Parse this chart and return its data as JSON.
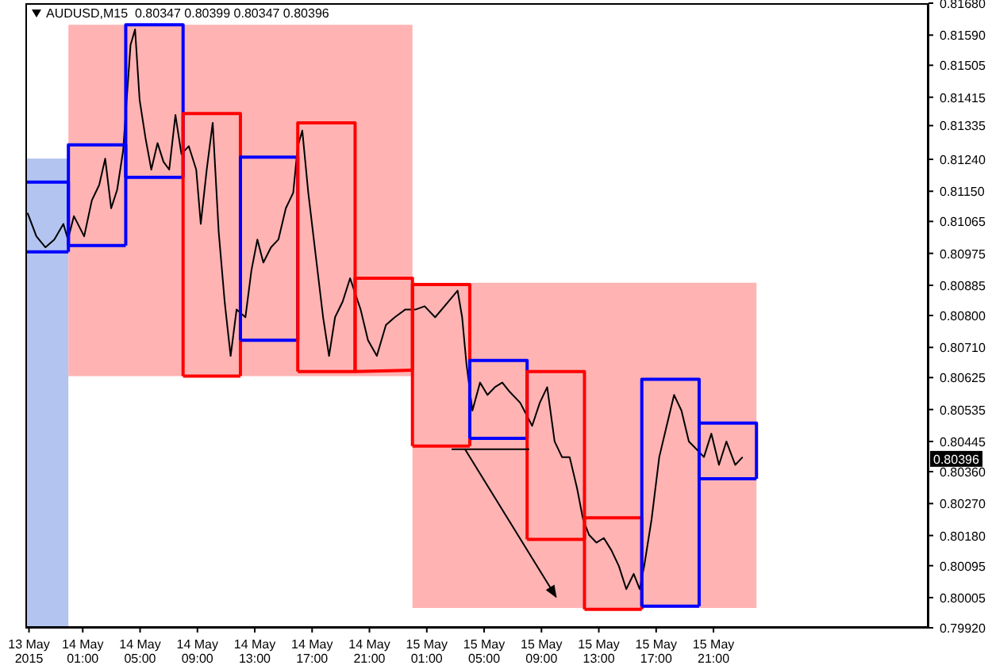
{
  "chart_data": {
    "type": "line",
    "title": "AUDUSD,M15  0.80347 0.80399 0.80347 0.80396",
    "xlim": [
      "2015-05-13T21:00",
      "2015-05-16T12:00"
    ],
    "ylim": [
      0.7992,
      0.8168
    ],
    "xticks": [
      {
        "value": "2015-05-13T21:15",
        "label": "13 May 2015"
      },
      {
        "value": "2015-05-14T01:00",
        "label": "14 May 01:00"
      },
      {
        "value": "2015-05-14T05:00",
        "label": "14 May 05:00"
      },
      {
        "value": "2015-05-14T09:00",
        "label": "14 May 09:00"
      },
      {
        "value": "2015-05-14T13:00",
        "label": "14 May 13:00"
      },
      {
        "value": "2015-05-14T17:00",
        "label": "14 May 17:00"
      },
      {
        "value": "2015-05-14T21:00",
        "label": "14 May 21:00"
      },
      {
        "value": "2015-05-15T01:00",
        "label": "15 May 01:00"
      },
      {
        "value": "2015-05-15T05:00",
        "label": "15 May 05:00"
      },
      {
        "value": "2015-05-15T09:00",
        "label": "15 May 09:00"
      },
      {
        "value": "2015-05-15T13:00",
        "label": "15 May 13:00"
      },
      {
        "value": "2015-05-15T17:00",
        "label": "15 May 17:00"
      },
      {
        "value": "2015-05-15T21:00",
        "label": "15 May 21:00"
      }
    ],
    "yticks": [
      {
        "value": 0.8168,
        "label": "0.81680"
      },
      {
        "value": 0.8159,
        "label": "0.81590"
      },
      {
        "value": 0.81505,
        "label": "0.81505"
      },
      {
        "value": 0.81415,
        "label": "0.81415"
      },
      {
        "value": 0.81335,
        "label": "0.81335"
      },
      {
        "value": 0.8124,
        "label": "0.81240"
      },
      {
        "value": 0.8115,
        "label": "0.81150"
      },
      {
        "value": 0.81065,
        "label": "0.81065"
      },
      {
        "value": 0.80975,
        "label": "0.80975"
      },
      {
        "value": 0.80885,
        "label": "0.80885"
      },
      {
        "value": 0.808,
        "label": "0.80800"
      },
      {
        "value": 0.8071,
        "label": "0.80710"
      },
      {
        "value": 0.80625,
        "label": "0.80625"
      },
      {
        "value": 0.80535,
        "label": "0.80535"
      },
      {
        "value": 0.80445,
        "label": "0.80445"
      },
      {
        "value": 0.8036,
        "label": "0.80360"
      },
      {
        "value": 0.8027,
        "label": "0.80270"
      },
      {
        "value": 0.8018,
        "label": "0.80180"
      },
      {
        "value": 0.80095,
        "label": "0.80095"
      },
      {
        "value": 0.80005,
        "label": "0.80005"
      },
      {
        "value": 0.7992,
        "label": "0.79920"
      }
    ],
    "annotations": [
      {
        "text": "0.80396",
        "y": 0.80396
      }
    ],
    "series": [
      {
        "type": "area",
        "color": "#b4c4f0",
        "x": [
          "2015-05-13T21:00",
          "2015-05-14T00:00"
        ],
        "values": [
          null,
          null
        ],
        "lower": [
          0.7992,
          0.7992
        ],
        "upper": [
          0.81242,
          0.81242
        ]
      },
      {
        "type": "area",
        "color": "#ffb3b3",
        "x": [
          "2015-05-14T00:00",
          "2015-05-15T00:00"
        ],
        "values": [
          null,
          null
        ],
        "lower": [
          0.80629,
          0.80629
        ],
        "upper": [
          0.81619,
          0.81619
        ]
      },
      {
        "type": "area",
        "color": "#ffb3b3",
        "x": [
          "2015-05-15T00:00",
          "2015-05-16T00:00"
        ],
        "values": [
          null,
          null
        ],
        "lower": [
          0.79976,
          0.79976
        ],
        "upper": [
          0.80892,
          0.80892
        ]
      },
      {
        "color": "#000000",
        "x": [
          "2015-05-13T21:09",
          "2015-05-13T21:46",
          "2015-05-13T22:24",
          "2015-05-13T23:01",
          "2015-05-13T23:39",
          "2015-05-13T23:58",
          "2015-05-14T00:23",
          "2015-05-14T01:06",
          "2015-05-14T01:38",
          "2015-05-14T02:09",
          "2015-05-14T02:34",
          "2015-05-14T02:59",
          "2015-05-14T03:24",
          "2015-05-14T03:49",
          "2015-05-14T04:20",
          "2015-05-14T04:39",
          "2015-05-14T04:58",
          "2015-05-14T05:23",
          "2015-05-14T05:47",
          "2015-05-14T06:13",
          "2015-05-14T06:38",
          "2015-05-14T07:02",
          "2015-05-14T07:28",
          "2015-05-14T07:53",
          "2015-05-14T08:24",
          "2015-05-14T08:55",
          "2015-05-14T09:14",
          "2015-05-14T09:39",
          "2015-05-14T10:04",
          "2015-05-14T10:29",
          "2015-05-14T10:54",
          "2015-05-14T11:19",
          "2015-05-14T11:44",
          "2015-05-14T12:21",
          "2015-05-14T12:46",
          "2015-05-14T13:11",
          "2015-05-14T13:36",
          "2015-05-14T14:08",
          "2015-05-14T14:39",
          "2015-05-14T15:10",
          "2015-05-14T15:41",
          "2015-05-14T16:00",
          "2015-05-14T16:19",
          "2015-05-14T16:44",
          "2015-05-14T17:15",
          "2015-05-14T17:46",
          "2015-05-14T18:11",
          "2015-05-14T18:36",
          "2015-05-14T19:08",
          "2015-05-14T19:39",
          "2015-05-14T20:23",
          "2015-05-14T20:54",
          "2015-05-14T21:31",
          "2015-05-14T22:09",
          "2015-05-14T22:46",
          "2015-05-14T23:30",
          "2015-05-15T00:14",
          "2015-05-15T00:51",
          "2015-05-15T01:35",
          "2015-05-15T02:19",
          "2015-05-15T03:09",
          "2015-05-15T03:28",
          "2015-05-15T03:46",
          "2015-05-15T04:11",
          "2015-05-15T04:43",
          "2015-05-15T05:14",
          "2015-05-15T05:45",
          "2015-05-15T06:16",
          "2015-05-15T06:47",
          "2015-05-15T07:31",
          "2015-05-15T08:21",
          "2015-05-15T08:53",
          "2015-05-15T09:24",
          "2015-05-15T09:55",
          "2015-05-15T10:26",
          "2015-05-15T10:58",
          "2015-05-15T11:29",
          "2015-05-15T11:54",
          "2015-05-15T12:19",
          "2015-05-15T12:50",
          "2015-05-15T13:21",
          "2015-05-15T13:53",
          "2015-05-15T14:24",
          "2015-05-15T14:55",
          "2015-05-15T15:26",
          "2015-05-15T15:51",
          "2015-05-15T16:10",
          "2015-05-15T16:41",
          "2015-05-15T17:13",
          "2015-05-15T17:44",
          "2015-05-15T18:15",
          "2015-05-15T18:46",
          "2015-05-15T19:17",
          "2015-05-15T19:49",
          "2015-05-15T20:20",
          "2015-05-15T20:51",
          "2015-05-15T21:23",
          "2015-05-15T21:54",
          "2015-05-15T22:31",
          "2015-05-15T23:02"
        ],
        "values": [
          0.81089,
          0.81023,
          0.80992,
          0.81014,
          0.81058,
          0.81014,
          0.8108,
          0.81023,
          0.81124,
          0.81168,
          0.81242,
          0.81102,
          0.81154,
          0.81264,
          0.81562,
          0.81606,
          0.81408,
          0.81299,
          0.81211,
          0.81286,
          0.81233,
          0.81211,
          0.81365,
          0.81255,
          0.81277,
          0.81211,
          0.81058,
          0.81211,
          0.81343,
          0.81036,
          0.80839,
          0.80686,
          0.80817,
          0.80795,
          0.80927,
          0.81014,
          0.80949,
          0.80992,
          0.81014,
          0.81102,
          0.81146,
          0.81277,
          0.81321,
          0.81146,
          0.8097,
          0.80795,
          0.80686,
          0.80795,
          0.80839,
          0.80905,
          0.80817,
          0.8073,
          0.80686,
          0.80773,
          0.80795,
          0.80817,
          0.80817,
          0.80826,
          0.80795,
          0.8083,
          0.8087,
          0.80795,
          0.80664,
          0.80532,
          0.80611,
          0.80576,
          0.80598,
          0.80611,
          0.80585,
          0.80554,
          0.80489,
          0.80554,
          0.80598,
          0.80445,
          0.80401,
          0.80401,
          0.80313,
          0.80226,
          0.80182,
          0.8016,
          0.80173,
          0.80138,
          0.80094,
          0.80029,
          0.80072,
          0.80029,
          0.80094,
          0.80226,
          0.80401,
          0.80489,
          0.80576,
          0.80532,
          0.80445,
          0.80423,
          0.80401,
          0.80467,
          0.80379,
          0.80445,
          0.80379,
          0.80401
        ]
      },
      {
        "color": "#0000ff",
        "x": [
          "2015-05-13T21:00",
          "2015-05-13T21:00",
          "2015-05-14T00:00",
          "2015-05-14T00:00"
        ],
        "values": [
          0.80979,
          0.81176,
          0.81176,
          0.80979
        ]
      },
      {
        "color": "#0000ff",
        "x": [
          "2015-05-13T21:00",
          "2015-05-14T00:00"
        ],
        "values": [
          0.80979,
          0.80979
        ]
      },
      {
        "color": "#0000ff",
        "x": [
          "2015-05-14T00:00",
          "2015-05-14T00:00",
          "2015-05-14T04:00",
          "2015-05-14T04:00"
        ],
        "values": [
          0.80997,
          0.81281,
          0.81281,
          0.80997
        ]
      },
      {
        "color": "#0000ff",
        "x": [
          "2015-05-14T00:00",
          "2015-05-14T04:00"
        ],
        "values": [
          0.80997,
          0.80997
        ]
      },
      {
        "color": "#0000ff",
        "x": [
          "2015-05-14T04:00",
          "2015-05-14T04:00",
          "2015-05-14T08:00",
          "2015-05-14T08:00"
        ],
        "values": [
          0.81189,
          0.81619,
          0.81619,
          0.81189
        ]
      },
      {
        "color": "#0000ff",
        "x": [
          "2015-05-14T04:00",
          "2015-05-14T08:00"
        ],
        "values": [
          0.81189,
          0.81189
        ]
      },
      {
        "color": "#ff0000",
        "x": [
          "2015-05-14T08:00",
          "2015-05-14T08:00",
          "2015-05-14T12:00",
          "2015-05-14T12:00"
        ],
        "values": [
          0.80629,
          0.81369,
          0.81369,
          0.80629
        ]
      },
      {
        "color": "#ff0000",
        "x": [
          "2015-05-14T08:00",
          "2015-05-14T12:00"
        ],
        "values": [
          0.80629,
          0.80629
        ]
      },
      {
        "color": "#0000ff",
        "x": [
          "2015-05-14T12:00",
          "2015-05-14T12:00",
          "2015-05-14T16:00",
          "2015-05-14T16:00"
        ],
        "values": [
          0.8073,
          0.81246,
          0.81246,
          0.8073
        ]
      },
      {
        "color": "#0000ff",
        "x": [
          "2015-05-14T12:00",
          "2015-05-14T16:00"
        ],
        "values": [
          0.8073,
          0.8073
        ]
      },
      {
        "color": "#ff0000",
        "x": [
          "2015-05-14T16:00",
          "2015-05-14T16:00",
          "2015-05-14T20:00",
          "2015-05-14T20:00"
        ],
        "values": [
          0.80642,
          0.81343,
          0.81343,
          0.80642
        ]
      },
      {
        "color": "#ff0000",
        "x": [
          "2015-05-14T16:00",
          "2015-05-14T20:00",
          "2015-05-15T00:00"
        ],
        "values": [
          0.80642,
          0.80642,
          0.80646
        ]
      },
      {
        "color": "#ff0000",
        "x": [
          "2015-05-14T20:00",
          "2015-05-14T20:00",
          "2015-05-15T00:00",
          "2015-05-15T00:00"
        ],
        "values": [
          0.80646,
          0.80905,
          0.80905,
          0.80646
        ]
      },
      {
        "color": "#ff0000",
        "x": [
          "2015-05-15T00:00",
          "2015-05-15T00:00",
          "2015-05-15T04:00",
          "2015-05-15T04:00"
        ],
        "values": [
          0.80432,
          0.80887,
          0.80887,
          0.80432
        ]
      },
      {
        "color": "#ff0000",
        "x": [
          "2015-05-15T00:00",
          "2015-05-15T04:00"
        ],
        "values": [
          0.80432,
          0.80432
        ]
      },
      {
        "color": "#0000ff",
        "x": [
          "2015-05-15T04:00",
          "2015-05-15T04:00",
          "2015-05-15T08:00",
          "2015-05-15T08:00"
        ],
        "values": [
          0.80454,
          0.80673,
          0.80673,
          0.80454
        ]
      },
      {
        "color": "#0000ff",
        "x": [
          "2015-05-15T04:00",
          "2015-05-15T08:00"
        ],
        "values": [
          0.80454,
          0.80454
        ]
      },
      {
        "color": "#ff0000",
        "x": [
          "2015-05-15T08:00",
          "2015-05-15T08:00",
          "2015-05-15T12:00",
          "2015-05-15T12:00"
        ],
        "values": [
          0.80169,
          0.80642,
          0.80642,
          0.80169
        ]
      },
      {
        "color": "#ff0000",
        "x": [
          "2015-05-15T08:00",
          "2015-05-15T12:00"
        ],
        "values": [
          0.80169,
          0.80169
        ]
      },
      {
        "color": "#ff0000",
        "x": [
          "2015-05-15T12:00",
          "2015-05-15T12:00",
          "2015-05-15T16:00",
          "2015-05-15T16:00"
        ],
        "values": [
          0.79972,
          0.8023,
          0.8023,
          0.79972
        ]
      },
      {
        "color": "#ff0000",
        "x": [
          "2015-05-15T12:00",
          "2015-05-15T16:00"
        ],
        "values": [
          0.79972,
          0.79972
        ]
      },
      {
        "color": "#0000ff",
        "x": [
          "2015-05-15T16:00",
          "2015-05-15T16:00",
          "2015-05-15T20:00",
          "2015-05-15T20:00"
        ],
        "values": [
          0.79981,
          0.8062,
          0.8062,
          0.79981
        ]
      },
      {
        "color": "#0000ff",
        "x": [
          "2015-05-15T16:00",
          "2015-05-15T20:00"
        ],
        "values": [
          0.79981,
          0.79981
        ]
      },
      {
        "color": "#0000ff",
        "x": [
          "2015-05-15T20:00",
          "2015-05-15T20:00",
          "2015-05-16T00:00",
          "2015-05-16T00:00"
        ],
        "values": [
          0.8034,
          0.80497,
          0.80497,
          0.8034
        ]
      },
      {
        "color": "#0000ff",
        "x": [
          "2015-05-15T20:00",
          "2015-05-16T00:00"
        ],
        "values": [
          0.8034,
          0.8034
        ]
      },
      {
        "color": "#000000",
        "x": [
          "2015-05-15T02:44",
          "2015-05-15T08:09"
        ],
        "values": [
          0.80423,
          0.80423
        ]
      },
      {
        "color": "#000000",
        "x": [
          "2015-05-15T03:40",
          "2015-05-15T10:01"
        ],
        "values": [
          0.80423,
          0.80007
        ]
      }
    ]
  }
}
